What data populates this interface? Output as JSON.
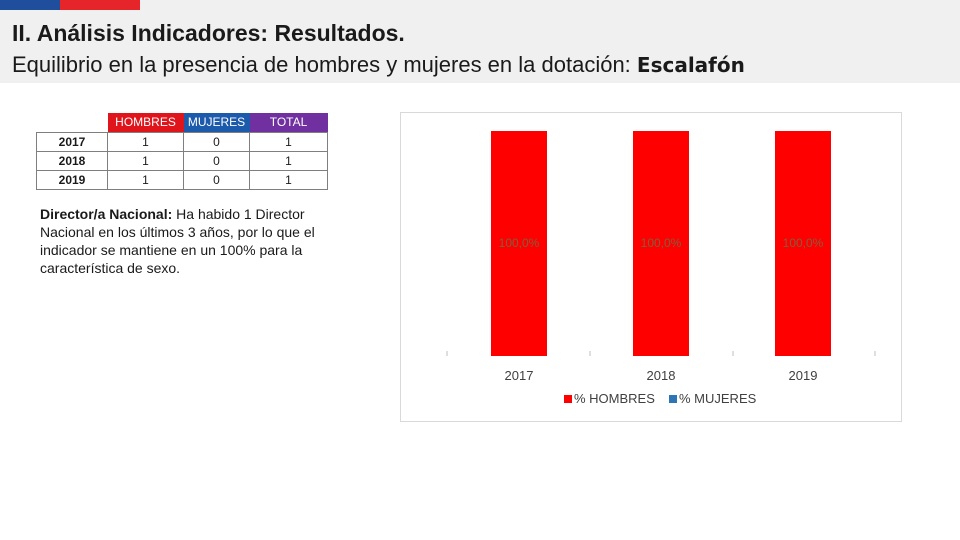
{
  "header": {
    "title": "II. Análisis Indicadores: Resultados.",
    "subtitle_prefix": "Equilibrio en la presencia de hombres y mujeres en la dotación: ",
    "subtitle_emphasis": "Escalafón"
  },
  "table": {
    "headers": [
      "HOMBRES",
      "MUJERES",
      "TOTAL"
    ],
    "rows": [
      {
        "year": "2017",
        "hombres": "1",
        "mujeres": "0",
        "total": "1"
      },
      {
        "year": "2018",
        "hombres": "1",
        "mujeres": "0",
        "total": "1"
      },
      {
        "year": "2019",
        "hombres": "1",
        "mujeres": "0",
        "total": "1"
      }
    ]
  },
  "director": {
    "label": "Director/a Nacional:",
    "text": " Ha habido 1 Director Nacional en los últimos 3 años, por lo que el indicador se mantiene en un 100% para la característica de sexo."
  },
  "colors": {
    "hombres": "#ff0000",
    "mujeres": "#2e75b6"
  },
  "chart_data": {
    "type": "bar",
    "stacked": true,
    "categories": [
      "2017",
      "2018",
      "2019"
    ],
    "series": [
      {
        "name": "% HOMBRES",
        "values": [
          100.0,
          100.0,
          100.0
        ],
        "labels": [
          "100,0%",
          "100,0%",
          "100,0%"
        ]
      },
      {
        "name": "% MUJERES",
        "values": [
          0,
          0,
          0
        ]
      }
    ],
    "ylim": [
      0,
      100
    ],
    "legend": "bottom"
  }
}
